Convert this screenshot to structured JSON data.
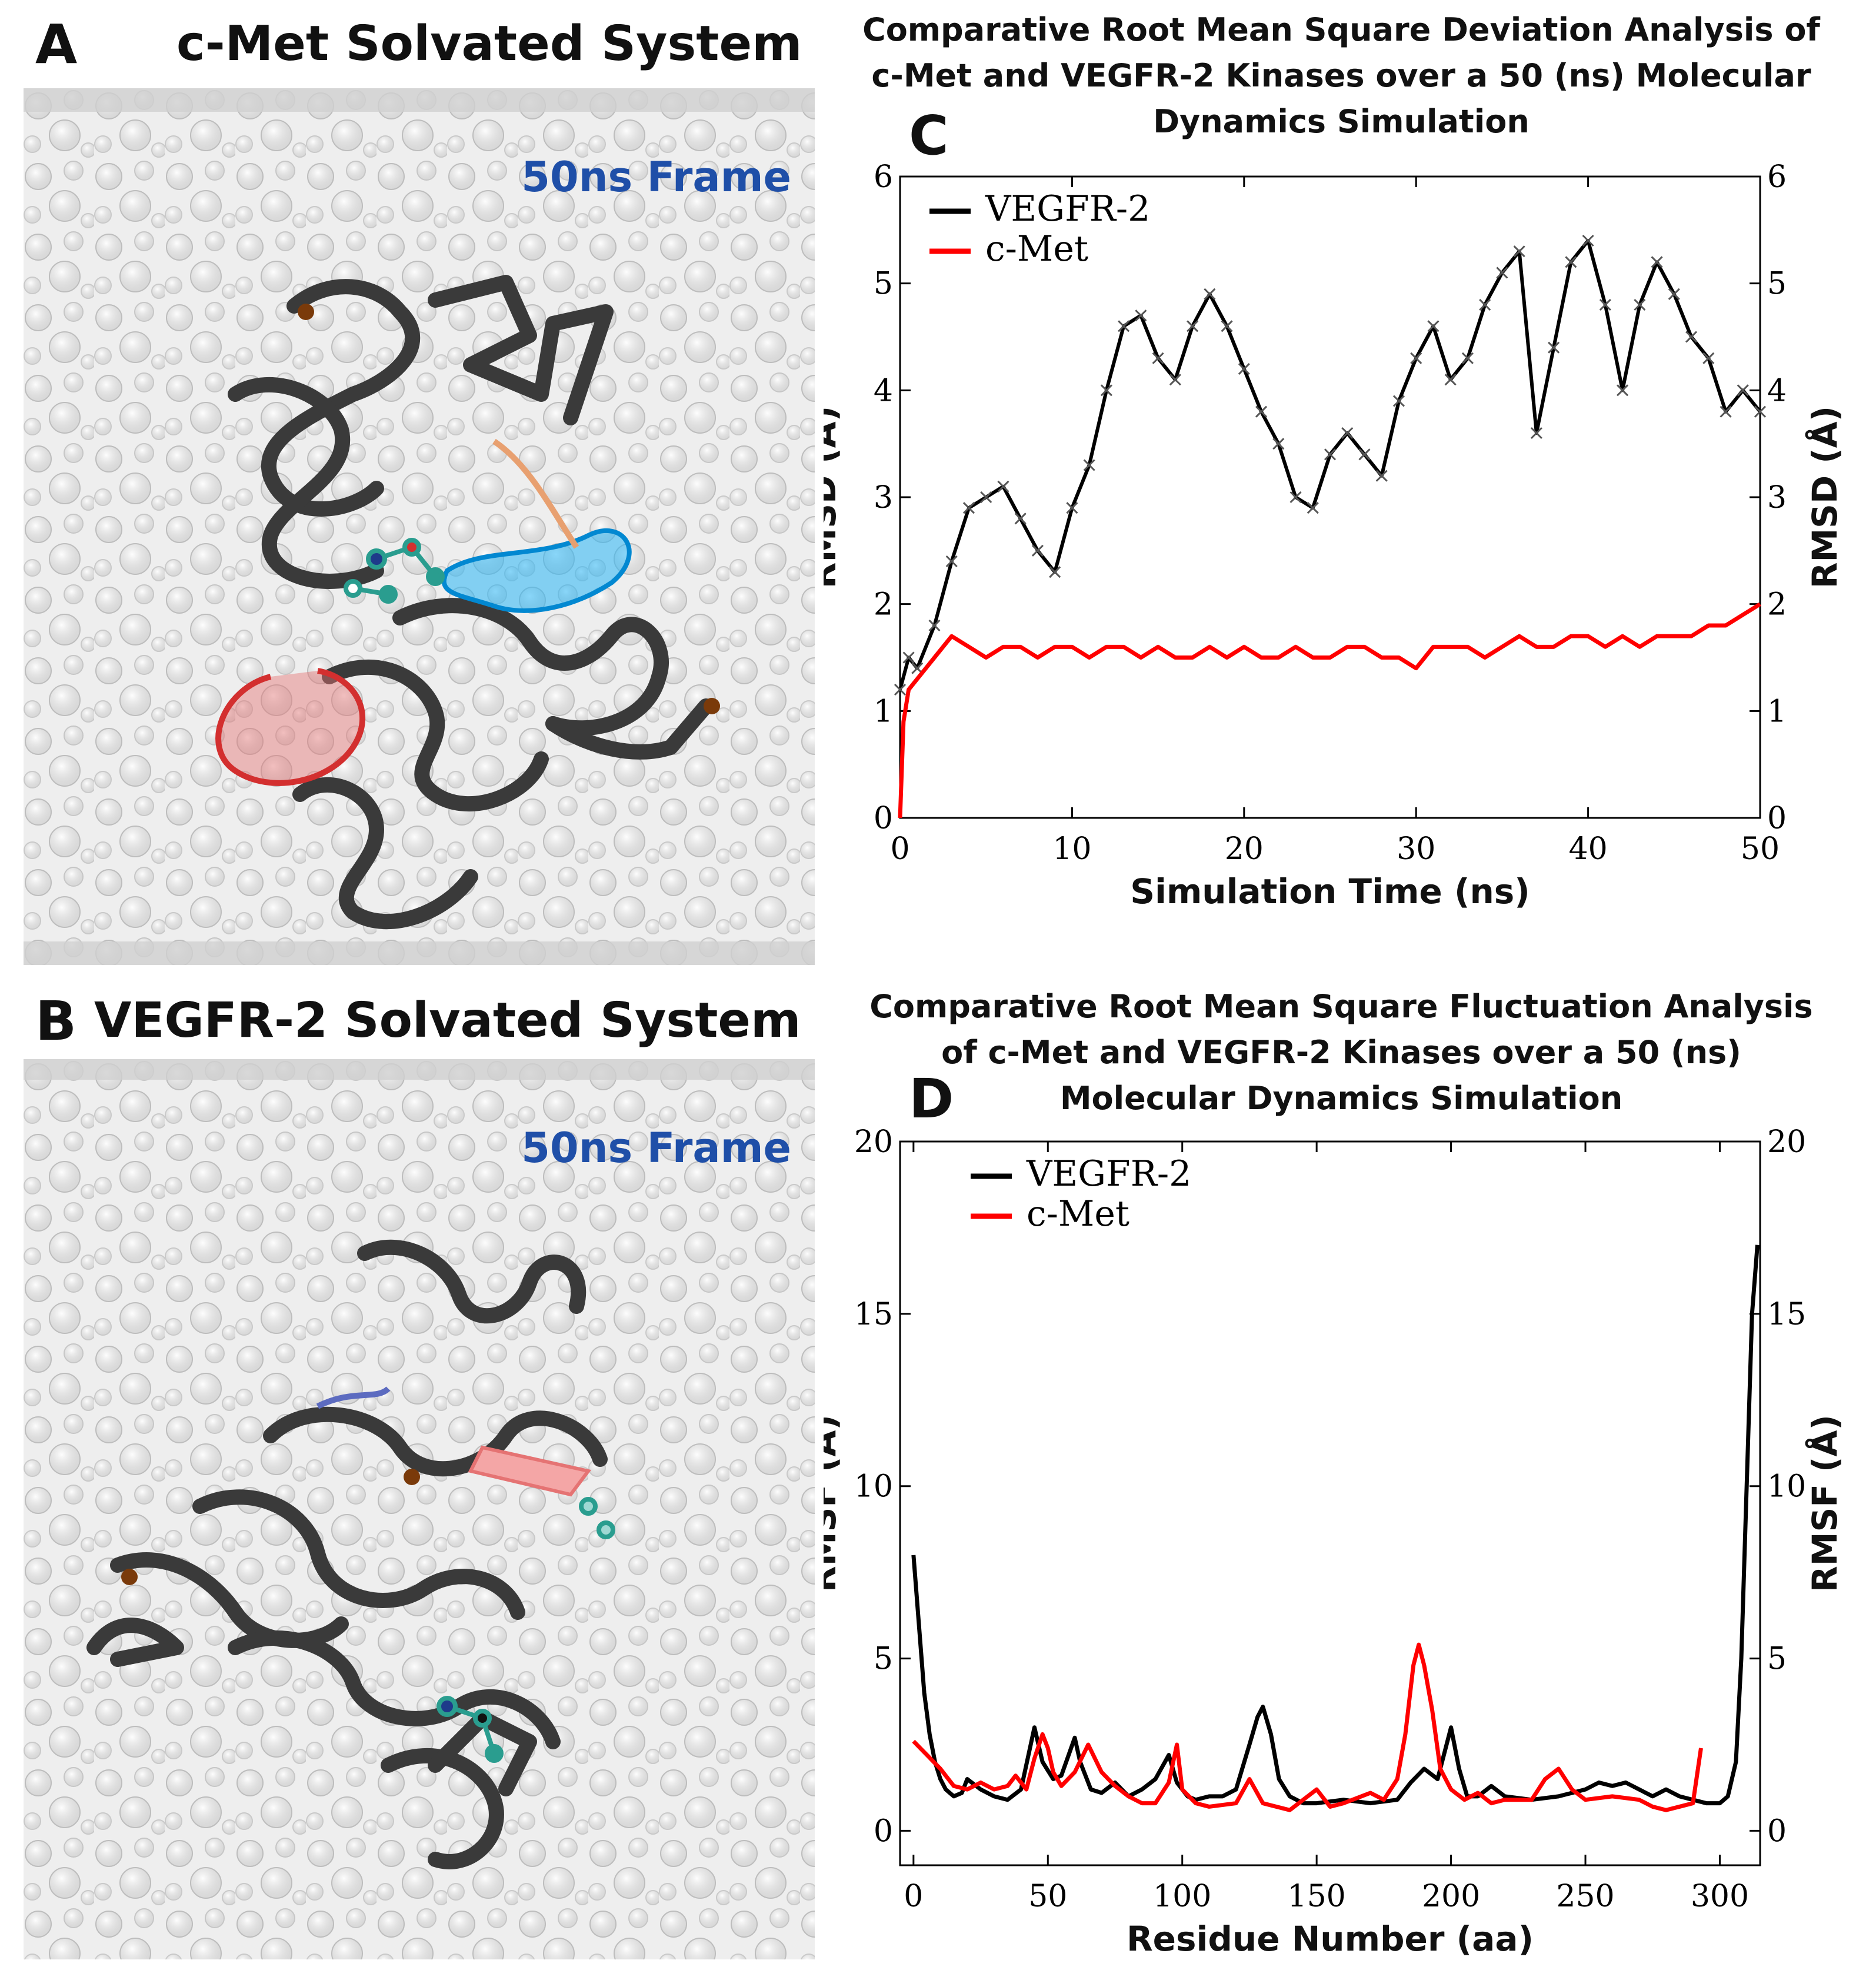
{
  "panelA": {
    "letter": "A",
    "title": "c-Met Solvated System",
    "frame_label": "50ns Frame"
  },
  "panelB": {
    "letter": "B",
    "title": "VEGFR-2 Solvated System",
    "frame_label": "50ns Frame"
  },
  "panelC": {
    "letter": "C",
    "title_lines": [
      "Comparative Root Mean Square Deviation Analysis of",
      "c-Met and VEGFR-2 Kinases over a 50 (ns) Molecular",
      "Dynamics Simulation"
    ]
  },
  "panelD": {
    "letter": "D",
    "title_lines": [
      "Comparative Root Mean Square Fluctuation Analysis",
      "of c-Met and VEGFR-2 Kinases over a 50 (ns)",
      "Molecular Dynamics Simulation"
    ]
  },
  "colors": {
    "vegfr2": "#000000",
    "cmet": "#ff0000",
    "frame_label": "#1f4fa8",
    "protein": "#3a3a3a",
    "water": "#d9d9d9"
  },
  "chart_data": [
    {
      "id": "rmsd",
      "type": "line",
      "xlabel": "Simulation Time (ns)",
      "ylabel": "RMSD (Å)",
      "ylabel_right": "RMSD (Å)",
      "xlim": [
        0,
        50
      ],
      "ylim": [
        0,
        6
      ],
      "xticks": [
        "0",
        "10",
        "20",
        "30",
        "40",
        "50"
      ],
      "yticks": [
        "0",
        "1",
        "2",
        "3",
        "4",
        "5",
        "6"
      ],
      "legend_position": "top-left",
      "series": [
        {
          "name": "VEGFR-2",
          "color": "#000000",
          "marker": "x",
          "x": [
            0,
            0.5,
            1,
            2,
            3,
            4,
            5,
            6,
            7,
            8,
            9,
            10,
            11,
            12,
            13,
            14,
            15,
            16,
            17,
            18,
            19,
            20,
            21,
            22,
            23,
            24,
            25,
            26,
            27,
            28,
            29,
            30,
            31,
            32,
            33,
            34,
            35,
            36,
            37,
            38,
            39,
            40,
            41,
            42,
            43,
            44,
            45,
            46,
            47,
            48,
            49,
            50
          ],
          "y": [
            1.2,
            1.5,
            1.4,
            1.8,
            2.4,
            2.9,
            3.0,
            3.1,
            2.8,
            2.5,
            2.3,
            2.9,
            3.3,
            4.0,
            4.6,
            4.7,
            4.3,
            4.1,
            4.6,
            4.9,
            4.6,
            4.2,
            3.8,
            3.5,
            3.0,
            2.9,
            3.4,
            3.6,
            3.4,
            3.2,
            3.9,
            4.3,
            4.6,
            4.1,
            4.3,
            4.8,
            5.1,
            5.3,
            3.6,
            4.4,
            5.2,
            5.4,
            4.8,
            4.0,
            4.8,
            5.2,
            4.9,
            4.5,
            4.3,
            3.8,
            4.0,
            3.8
          ]
        },
        {
          "name": "c-Met",
          "color": "#ff0000",
          "marker": "none",
          "x": [
            0,
            0.2,
            0.5,
            1,
            2,
            3,
            4,
            5,
            6,
            7,
            8,
            9,
            10,
            11,
            12,
            13,
            14,
            15,
            16,
            17,
            18,
            19,
            20,
            21,
            22,
            23,
            24,
            25,
            26,
            27,
            28,
            29,
            30,
            31,
            32,
            33,
            34,
            35,
            36,
            37,
            38,
            39,
            40,
            41,
            42,
            43,
            44,
            45,
            46,
            47,
            48,
            49,
            50
          ],
          "y": [
            0.0,
            0.9,
            1.2,
            1.3,
            1.5,
            1.7,
            1.6,
            1.5,
            1.6,
            1.6,
            1.5,
            1.6,
            1.6,
            1.5,
            1.6,
            1.6,
            1.5,
            1.6,
            1.5,
            1.5,
            1.6,
            1.5,
            1.6,
            1.5,
            1.5,
            1.6,
            1.5,
            1.5,
            1.6,
            1.6,
            1.5,
            1.5,
            1.4,
            1.6,
            1.6,
            1.6,
            1.5,
            1.6,
            1.7,
            1.6,
            1.6,
            1.7,
            1.7,
            1.6,
            1.7,
            1.6,
            1.7,
            1.7,
            1.7,
            1.8,
            1.8,
            1.9,
            2.0
          ]
        }
      ]
    },
    {
      "id": "rmsf",
      "type": "line",
      "xlabel": "Residue Number (aa)",
      "ylabel": "RMSF (Å)",
      "ylabel_right": "RMSF (Å)",
      "xlim": [
        -5,
        315
      ],
      "ylim": [
        -1,
        20
      ],
      "xticks": [
        "0",
        "50",
        "100",
        "150",
        "200",
        "250",
        "300"
      ],
      "yticks": [
        "0",
        "5",
        "10",
        "15",
        "20"
      ],
      "legend_position": "top-left",
      "series": [
        {
          "name": "VEGFR-2",
          "color": "#000000",
          "x": [
            0,
            2,
            4,
            6,
            8,
            10,
            12,
            15,
            18,
            20,
            25,
            30,
            35,
            40,
            45,
            48,
            52,
            55,
            60,
            62,
            66,
            70,
            75,
            80,
            85,
            90,
            95,
            98,
            102,
            105,
            110,
            115,
            120,
            125,
            128,
            130,
            133,
            136,
            140,
            145,
            150,
            160,
            170,
            180,
            185,
            190,
            195,
            200,
            203,
            206,
            210,
            215,
            220,
            230,
            240,
            250,
            255,
            260,
            265,
            270,
            275,
            280,
            285,
            290,
            295,
            300,
            303,
            306,
            308,
            310,
            312,
            314
          ],
          "y": [
            8.0,
            6.0,
            4.0,
            2.8,
            2.0,
            1.5,
            1.2,
            1.0,
            1.1,
            1.5,
            1.2,
            1.0,
            0.9,
            1.2,
            3.0,
            2.0,
            1.5,
            1.6,
            2.7,
            2.0,
            1.2,
            1.1,
            1.4,
            1.0,
            1.2,
            1.5,
            2.2,
            1.4,
            1.0,
            0.9,
            1.0,
            1.0,
            1.2,
            2.5,
            3.3,
            3.6,
            2.8,
            1.5,
            1.0,
            0.8,
            0.8,
            0.9,
            0.8,
            0.9,
            1.4,
            1.8,
            1.5,
            3.0,
            1.8,
            1.0,
            1.0,
            1.3,
            1.0,
            0.9,
            1.0,
            1.2,
            1.4,
            1.3,
            1.4,
            1.2,
            1.0,
            1.2,
            1.0,
            0.9,
            0.8,
            0.8,
            1.0,
            2.0,
            5.0,
            10.0,
            15.0,
            17.0
          ]
        },
        {
          "name": "c-Met",
          "color": "#ff0000",
          "x": [
            0,
            5,
            10,
            15,
            20,
            25,
            30,
            35,
            38,
            42,
            45,
            48,
            50,
            52,
            55,
            60,
            65,
            70,
            75,
            80,
            85,
            90,
            95,
            98,
            100,
            105,
            110,
            120,
            125,
            130,
            140,
            150,
            155,
            160,
            170,
            175,
            180,
            183,
            186,
            188,
            190,
            193,
            196,
            200,
            205,
            210,
            215,
            220,
            230,
            235,
            240,
            245,
            250,
            260,
            270,
            275,
            280,
            285,
            290,
            293
          ],
          "y": [
            2.6,
            2.2,
            1.8,
            1.3,
            1.2,
            1.4,
            1.2,
            1.3,
            1.6,
            1.2,
            2.1,
            2.8,
            2.4,
            1.7,
            1.3,
            1.7,
            2.5,
            1.7,
            1.3,
            1.0,
            0.8,
            0.8,
            1.4,
            2.5,
            1.2,
            0.8,
            0.7,
            0.8,
            1.5,
            0.8,
            0.6,
            1.2,
            0.7,
            0.8,
            1.1,
            0.9,
            1.5,
            2.8,
            4.8,
            5.4,
            4.8,
            3.5,
            1.8,
            1.2,
            0.9,
            1.1,
            0.8,
            0.9,
            0.9,
            1.5,
            1.8,
            1.2,
            0.9,
            1.0,
            0.9,
            0.7,
            0.6,
            0.7,
            0.8,
            2.4
          ]
        }
      ]
    }
  ]
}
